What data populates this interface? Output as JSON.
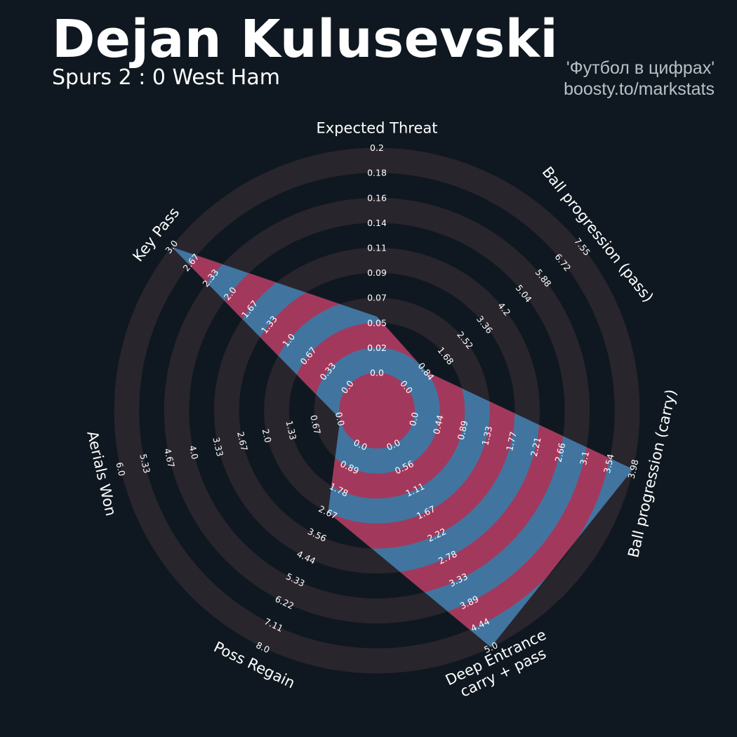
{
  "header": {
    "title": "Dejan Kulusevski",
    "subtitle": "Spurs 2 : 0 West Ham",
    "credit_line1": "'Футбол в цифрах'",
    "credit_line2": "boosty.to/markstats"
  },
  "colors": {
    "background": "#0f1820",
    "ring": "#29252c",
    "fill_blue": "#4175a0",
    "fill_pink": "#a2395d",
    "text": "#ffffff",
    "credit": "#b9c0c6"
  },
  "chart_data": {
    "type": "radar",
    "title": "Dejan Kulusevski",
    "subtitle": "Spurs 2 : 0 West Ham",
    "params": [
      {
        "label": [
          "Expected Threat"
        ],
        "ticks": [
          "0.0",
          "0.02",
          "0.05",
          "0.07",
          "0.09",
          "0.11",
          "0.14",
          "0.16",
          "0.18",
          "0.2"
        ],
        "min": 0.0,
        "max": 0.2,
        "value": 0.05
      },
      {
        "label": [
          "Ball progression (pass)"
        ],
        "ticks": [
          "0.0",
          "0.84",
          "1.68",
          "2.52",
          "3.36",
          "4.2",
          "5.04",
          "5.88",
          "6.72",
          "7.55"
        ],
        "min": 0.0,
        "max": 7.55,
        "value": 0.84
      },
      {
        "label": [
          "Ball progression (carry)"
        ],
        "ticks": [
          "0.0",
          "0.44",
          "0.89",
          "1.33",
          "1.77",
          "2.21",
          "2.66",
          "3.1",
          "3.54",
          "3.98"
        ],
        "min": 0.0,
        "max": 3.98,
        "value": 3.98
      },
      {
        "label": [
          "Deep Entrance",
          "carry + pass"
        ],
        "ticks": [
          "0.0",
          "0.56",
          "1.11",
          "1.67",
          "2.22",
          "2.78",
          "3.33",
          "3.89",
          "4.44",
          "5.0"
        ],
        "min": 0.0,
        "max": 5.0,
        "value": 5.0
      },
      {
        "label": [
          "Poss Regain"
        ],
        "ticks": [
          "0.0",
          "0.89",
          "1.78",
          "2.67",
          "3.56",
          "4.44",
          "5.33",
          "6.22",
          "7.11",
          "8.0"
        ],
        "min": 0.0,
        "max": 8.0,
        "value": 2.67
      },
      {
        "label": [
          "Aerials Won"
        ],
        "ticks": [
          "0.0",
          "0.67",
          "1.33",
          "2.0",
          "2.67",
          "3.33",
          "4.0",
          "4.67",
          "5.33",
          "6.0"
        ],
        "min": 0.0,
        "max": 6.0,
        "value": 0.0
      },
      {
        "label": [
          "Key Pass"
        ],
        "ticks": [
          "0.0",
          "0.33",
          "0.67",
          "1.0",
          "1.33",
          "1.67",
          "2.0",
          "2.33",
          "2.67",
          "3.0"
        ],
        "min": 0.0,
        "max": 3.0,
        "value": 3.0
      }
    ],
    "rings": 5,
    "grid": true
  }
}
